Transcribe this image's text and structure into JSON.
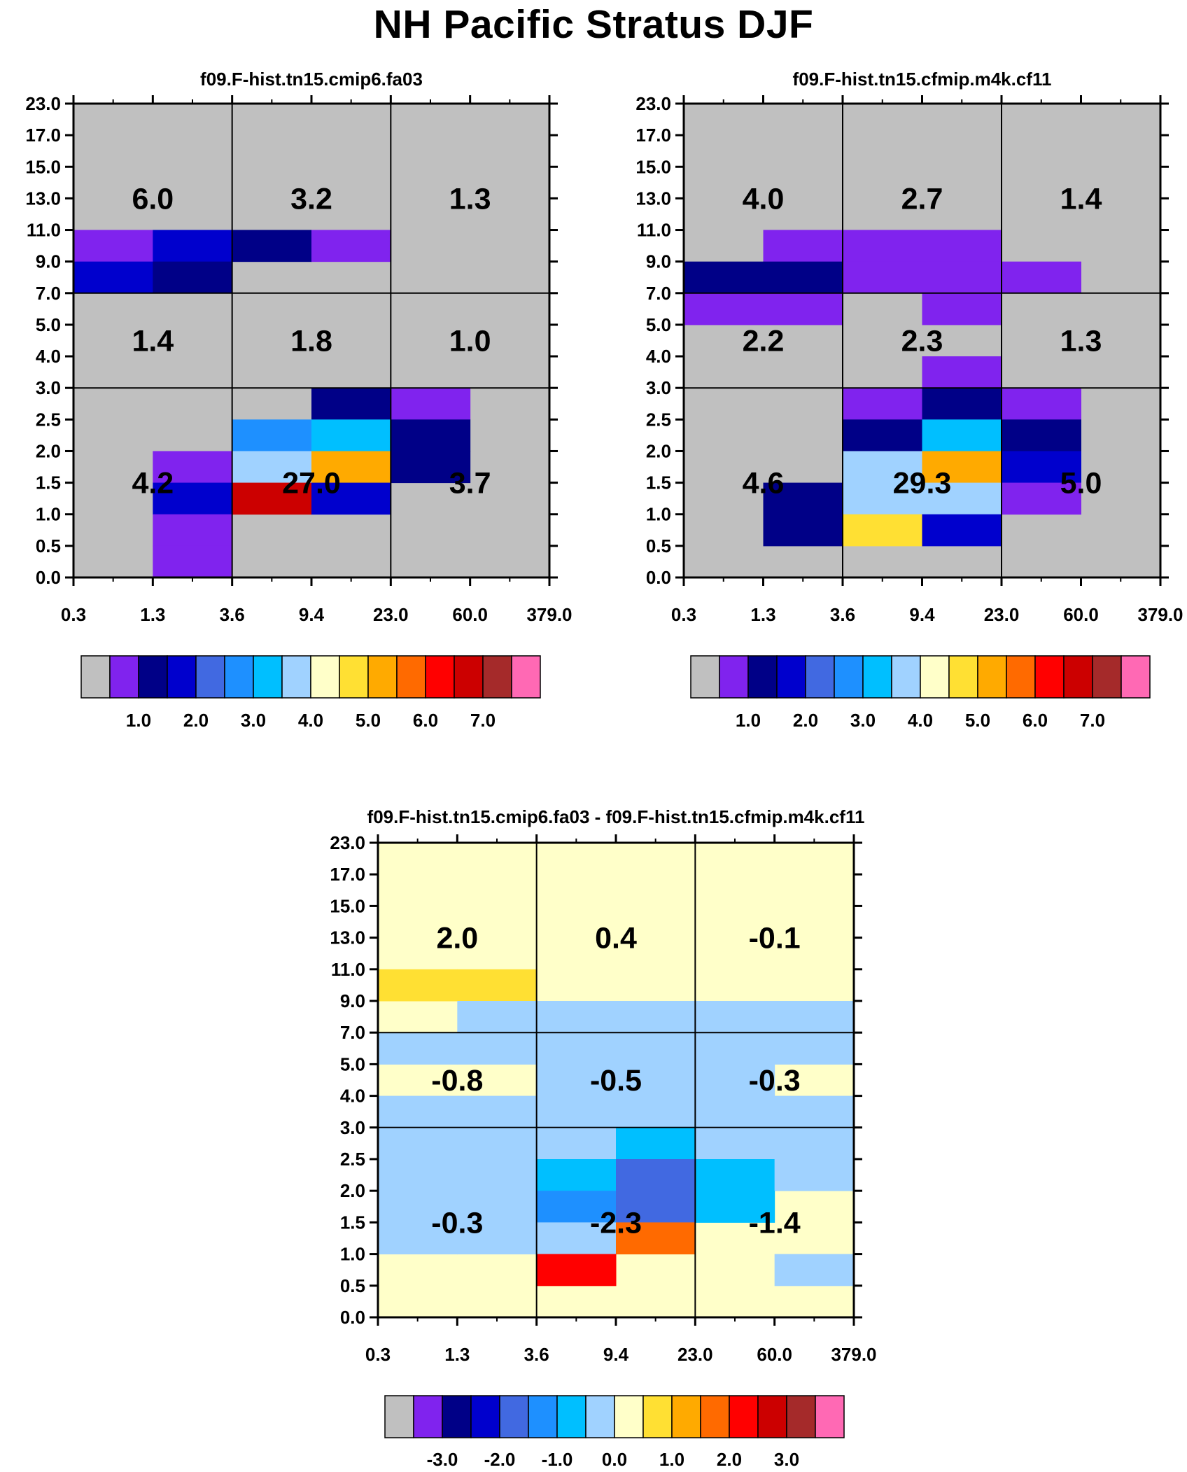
{
  "title": "NH Pacific Stratus DJF",
  "colors": {
    "palette": [
      "#c0c0c0",
      "#8023ee",
      "#000087",
      "#0000cd",
      "#4169e1",
      "#1e90ff",
      "#00bfff",
      "#a0d2ff",
      "#ffffc9",
      "#ffe033",
      "#ffaa00",
      "#ff6a00",
      "#ff0000",
      "#cc0000",
      "#a52a2a",
      "#ff69b4"
    ],
    "background": "#c0c0c0",
    "diff_background": "#ffffc9"
  },
  "chart_data": [
    {
      "type": "heatmap",
      "title": "f09.F-hist.tn15.cmip6.fa03",
      "x_ticks": [
        "0.3",
        "1.3",
        "3.6",
        "9.4",
        "23.0",
        "60.0",
        "379.0"
      ],
      "y_ticks": [
        "0.0",
        "0.5",
        "1.0",
        "1.5",
        "2.0",
        "2.5",
        "3.0",
        "4.0",
        "5.0",
        "7.0",
        "9.0",
        "11.0",
        "13.0",
        "15.0",
        "17.0",
        "23.0"
      ],
      "group_values": [
        [
          "6.0",
          "3.2",
          "1.3"
        ],
        [
          "1.4",
          "1.8",
          "1.0"
        ],
        [
          "4.2",
          "27.0",
          "3.7"
        ]
      ],
      "cells": [
        {
          "x": 0,
          "y": 10,
          "color": 1
        },
        {
          "x": 1,
          "y": 10,
          "color": 3
        },
        {
          "x": 2,
          "y": 10,
          "color": 2
        },
        {
          "x": 3,
          "y": 10,
          "color": 1
        },
        {
          "x": 0,
          "y": 9,
          "color": 3
        },
        {
          "x": 1,
          "y": 9,
          "color": 2
        },
        {
          "x": 3,
          "y": 5,
          "color": 2
        },
        {
          "x": 4,
          "y": 5,
          "color": 1
        },
        {
          "x": 2,
          "y": 4,
          "color": 5
        },
        {
          "x": 3,
          "y": 4,
          "color": 6
        },
        {
          "x": 4,
          "y": 4,
          "color": 2
        },
        {
          "x": 1,
          "y": 3,
          "color": 1
        },
        {
          "x": 2,
          "y": 3,
          "color": 7
        },
        {
          "x": 3,
          "y": 3,
          "color": 10
        },
        {
          "x": 4,
          "y": 3,
          "color": 2
        },
        {
          "x": 1,
          "y": 2,
          "color": 3
        },
        {
          "x": 2,
          "y": 2,
          "color": 13
        },
        {
          "x": 3,
          "y": 2,
          "color": 3
        },
        {
          "x": 1,
          "y": 1,
          "color": 1
        },
        {
          "x": 1,
          "y": 0,
          "color": 1
        }
      ],
      "colorbar_labels": [
        "1.0",
        "2.0",
        "3.0",
        "4.0",
        "5.0",
        "6.0",
        "7.0"
      ]
    },
    {
      "type": "heatmap",
      "title": "f09.F-hist.tn15.cfmip.m4k.cf11",
      "x_ticks": [
        "0.3",
        "1.3",
        "3.6",
        "9.4",
        "23.0",
        "60.0",
        "379.0"
      ],
      "y_ticks": [
        "0.0",
        "0.5",
        "1.0",
        "1.5",
        "2.0",
        "2.5",
        "3.0",
        "4.0",
        "5.0",
        "7.0",
        "9.0",
        "11.0",
        "13.0",
        "15.0",
        "17.0",
        "23.0"
      ],
      "group_values": [
        [
          "4.0",
          "2.7",
          "1.4"
        ],
        [
          "2.2",
          "2.3",
          "1.3"
        ],
        [
          "4.6",
          "29.3",
          "5.0"
        ]
      ],
      "cells": [
        {
          "x": 1,
          "y": 10,
          "color": 1
        },
        {
          "x": 2,
          "y": 10,
          "color": 1
        },
        {
          "x": 3,
          "y": 10,
          "color": 1
        },
        {
          "x": 0,
          "y": 9,
          "color": 2
        },
        {
          "x": 1,
          "y": 9,
          "color": 2
        },
        {
          "x": 2,
          "y": 9,
          "color": 1
        },
        {
          "x": 3,
          "y": 9,
          "color": 1
        },
        {
          "x": 4,
          "y": 9,
          "color": 1
        },
        {
          "x": 0,
          "y": 8,
          "color": 1
        },
        {
          "x": 1,
          "y": 8,
          "color": 1
        },
        {
          "x": 3,
          "y": 8,
          "color": 1
        },
        {
          "x": 3,
          "y": 6,
          "color": 1
        },
        {
          "x": 2,
          "y": 5,
          "color": 1
        },
        {
          "x": 3,
          "y": 5,
          "color": 2
        },
        {
          "x": 4,
          "y": 5,
          "color": 1
        },
        {
          "x": 2,
          "y": 4,
          "color": 2
        },
        {
          "x": 3,
          "y": 4,
          "color": 6
        },
        {
          "x": 4,
          "y": 4,
          "color": 2
        },
        {
          "x": 2,
          "y": 3,
          "color": 7
        },
        {
          "x": 3,
          "y": 3,
          "color": 10
        },
        {
          "x": 4,
          "y": 3,
          "color": 3
        },
        {
          "x": 1,
          "y": 2,
          "color": 2
        },
        {
          "x": 2,
          "y": 2,
          "color": 7
        },
        {
          "x": 3,
          "y": 2,
          "color": 7
        },
        {
          "x": 4,
          "y": 2,
          "color": 1
        },
        {
          "x": 1,
          "y": 1,
          "color": 2
        },
        {
          "x": 2,
          "y": 1,
          "color": 9
        },
        {
          "x": 3,
          "y": 1,
          "color": 3
        }
      ],
      "colorbar_labels": [
        "1.0",
        "2.0",
        "3.0",
        "4.0",
        "5.0",
        "6.0",
        "7.0"
      ]
    },
    {
      "type": "heatmap",
      "title": "f09.F-hist.tn15.cmip6.fa03 - f09.F-hist.tn15.cfmip.m4k.cf11",
      "x_ticks": [
        "0.3",
        "1.3",
        "3.6",
        "9.4",
        "23.0",
        "60.0",
        "379.0"
      ],
      "y_ticks": [
        "0.0",
        "0.5",
        "1.0",
        "1.5",
        "2.0",
        "2.5",
        "3.0",
        "4.0",
        "5.0",
        "7.0",
        "9.0",
        "11.0",
        "13.0",
        "15.0",
        "17.0",
        "23.0"
      ],
      "group_values": [
        [
          "2.0",
          "0.4",
          "-0.1"
        ],
        [
          "-0.8",
          "-0.5",
          "-0.3"
        ],
        [
          "-0.3",
          "-2.3",
          "-1.4"
        ]
      ],
      "cells": [
        {
          "x": 0,
          "y": 10,
          "color": 9
        },
        {
          "x": 1,
          "y": 10,
          "color": 9
        },
        {
          "x": 1,
          "y": 9,
          "color": 7
        },
        {
          "x": 2,
          "y": 9,
          "color": 7
        },
        {
          "x": 3,
          "y": 9,
          "color": 7
        },
        {
          "x": 4,
          "y": 9,
          "color": 7
        },
        {
          "x": 5,
          "y": 9,
          "color": 7
        },
        {
          "x": 0,
          "y": 8,
          "color": 7
        },
        {
          "x": 1,
          "y": 8,
          "color": 7
        },
        {
          "x": 2,
          "y": 8,
          "color": 7
        },
        {
          "x": 3,
          "y": 8,
          "color": 7
        },
        {
          "x": 4,
          "y": 8,
          "color": 7
        },
        {
          "x": 5,
          "y": 8,
          "color": 7
        },
        {
          "x": 2,
          "y": 7,
          "color": 7
        },
        {
          "x": 3,
          "y": 7,
          "color": 7
        },
        {
          "x": 4,
          "y": 7,
          "color": 7
        },
        {
          "x": 0,
          "y": 6,
          "color": 7
        },
        {
          "x": 1,
          "y": 6,
          "color": 7
        },
        {
          "x": 2,
          "y": 6,
          "color": 7
        },
        {
          "x": 3,
          "y": 6,
          "color": 7
        },
        {
          "x": 4,
          "y": 6,
          "color": 7
        },
        {
          "x": 5,
          "y": 6,
          "color": 7
        },
        {
          "x": 0,
          "y": 5,
          "color": 7
        },
        {
          "x": 1,
          "y": 5,
          "color": 7
        },
        {
          "x": 2,
          "y": 5,
          "color": 7
        },
        {
          "x": 3,
          "y": 5,
          "color": 6
        },
        {
          "x": 4,
          "y": 5,
          "color": 7
        },
        {
          "x": 5,
          "y": 5,
          "color": 7
        },
        {
          "x": 0,
          "y": 4,
          "color": 7
        },
        {
          "x": 1,
          "y": 4,
          "color": 7
        },
        {
          "x": 2,
          "y": 4,
          "color": 6
        },
        {
          "x": 3,
          "y": 4,
          "color": 4
        },
        {
          "x": 4,
          "y": 4,
          "color": 6
        },
        {
          "x": 5,
          "y": 4,
          "color": 7
        },
        {
          "x": 0,
          "y": 3,
          "color": 7
        },
        {
          "x": 1,
          "y": 3,
          "color": 7
        },
        {
          "x": 2,
          "y": 3,
          "color": 5
        },
        {
          "x": 3,
          "y": 3,
          "color": 4
        },
        {
          "x": 4,
          "y": 3,
          "color": 6
        },
        {
          "x": 0,
          "y": 2,
          "color": 7
        },
        {
          "x": 1,
          "y": 2,
          "color": 7
        },
        {
          "x": 2,
          "y": 2,
          "color": 7
        },
        {
          "x": 3,
          "y": 2,
          "color": 11
        },
        {
          "x": 2,
          "y": 1,
          "color": 12
        },
        {
          "x": 5,
          "y": 1,
          "color": 7
        }
      ],
      "colorbar_labels": [
        "-3.0",
        "-2.0",
        "-1.0",
        "0.0",
        "1.0",
        "2.0",
        "3.0"
      ]
    }
  ]
}
